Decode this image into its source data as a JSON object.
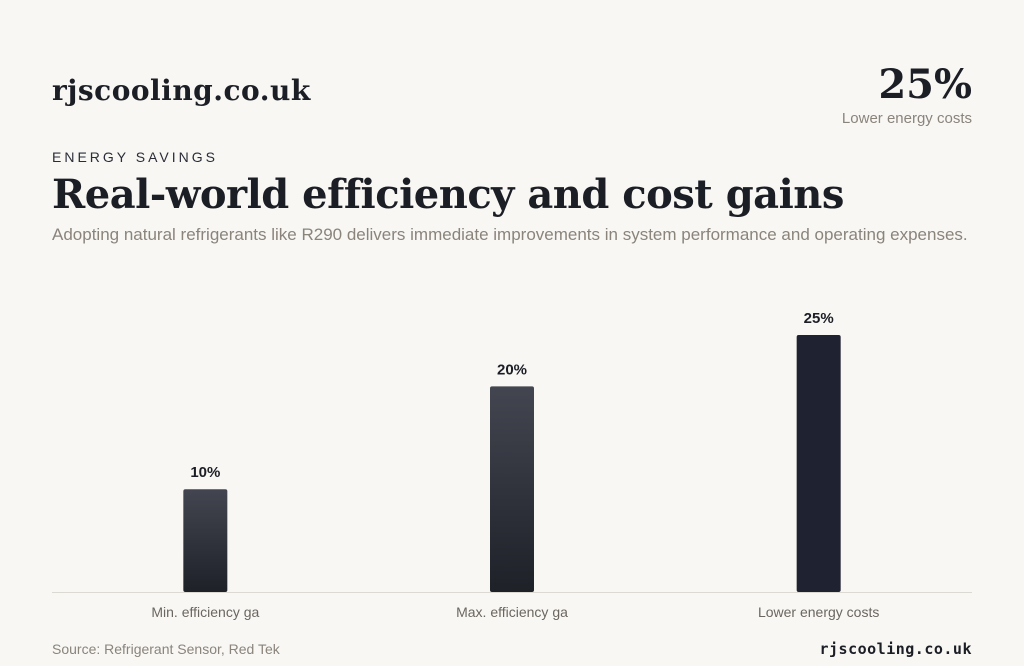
{
  "header": {
    "brand": "rjscooling.co.uk",
    "eyebrow": "ENERGY SAVINGS",
    "title": "Real-world efficiency and cost gains",
    "subtitle": "Adopting natural refrigerants like R290 delivers immediate improvements in system performance and operating expenses."
  },
  "kpi": {
    "value": "25%",
    "label": "Lower energy costs"
  },
  "chart_data": {
    "type": "bar",
    "categories": [
      "Min. efficiency ga",
      "Max. efficiency ga",
      "Lower energy costs"
    ],
    "values": [
      10,
      20,
      25
    ],
    "value_labels": [
      "10%",
      "20%",
      "25%"
    ],
    "unit": "%",
    "ylim": [
      0,
      25
    ],
    "grid": false,
    "colors": {
      "bar_top": "#434550",
      "bar_bottom": "#1f2129",
      "highlight": "#1f2230",
      "baseline": "#dcd9d2",
      "label": "#6b665f",
      "value_label": "#1c1e26"
    }
  },
  "footer": {
    "source": "Source: Refrigerant Sensor, Red Tek",
    "brand": "rjscooling.co.uk"
  }
}
